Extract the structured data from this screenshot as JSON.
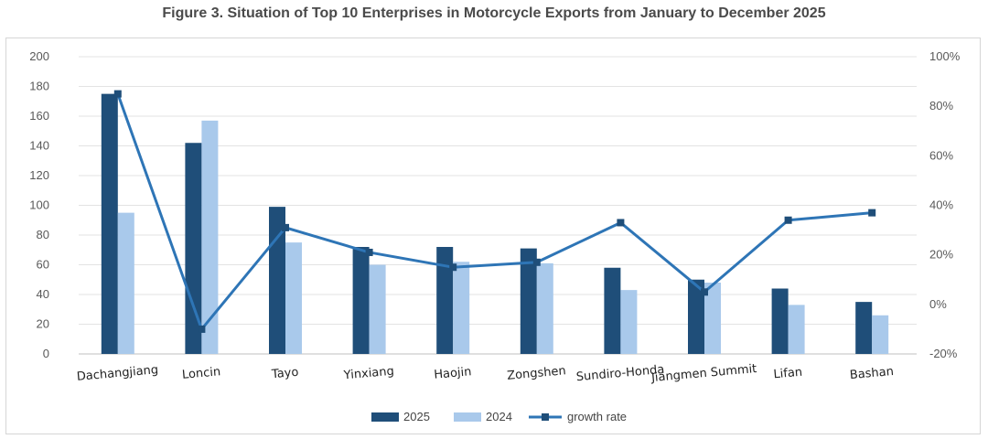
{
  "chart_data": {
    "type": "bar",
    "title": "Figure 3. Situation of Top 10 Enterprises in Motorcycle Exports from January to December 2025",
    "categories": [
      "Dachangjiang",
      "Loncin",
      "Tayo",
      "Yinxiang",
      "Haojin",
      "Zongshen",
      "Sundiro-Honda",
      "Jiangmen Summit",
      "Lifan",
      "Bashan"
    ],
    "series": [
      {
        "name": "2025",
        "type": "bar",
        "axis": "left",
        "color": "#1f4e79",
        "values": [
          175,
          142,
          99,
          72,
          72,
          71,
          58,
          50,
          44,
          35
        ]
      },
      {
        "name": "2024",
        "type": "bar",
        "axis": "left",
        "color": "#a9c9eb",
        "values": [
          95,
          157,
          75,
          60,
          62,
          61,
          43,
          48,
          33,
          26
        ]
      },
      {
        "name": "growth rate",
        "type": "line",
        "axis": "right",
        "color": "#2e75b6",
        "values": [
          85,
          -10,
          31,
          21,
          15,
          17,
          33,
          5,
          34,
          37
        ]
      }
    ],
    "y_left": {
      "min": 0,
      "max": 200,
      "step": 20,
      "ticks": [
        "0",
        "20",
        "40",
        "60",
        "80",
        "100",
        "120",
        "140",
        "160",
        "180",
        "200"
      ]
    },
    "y_right": {
      "min": -20,
      "max": 100,
      "step": 20,
      "ticks": [
        "-20%",
        "0%",
        "20%",
        "40%",
        "60%",
        "80%",
        "100%"
      ]
    },
    "legend": {
      "position": "bottom",
      "items": [
        "2025",
        "2024",
        "growth rate"
      ]
    },
    "grid": true
  }
}
